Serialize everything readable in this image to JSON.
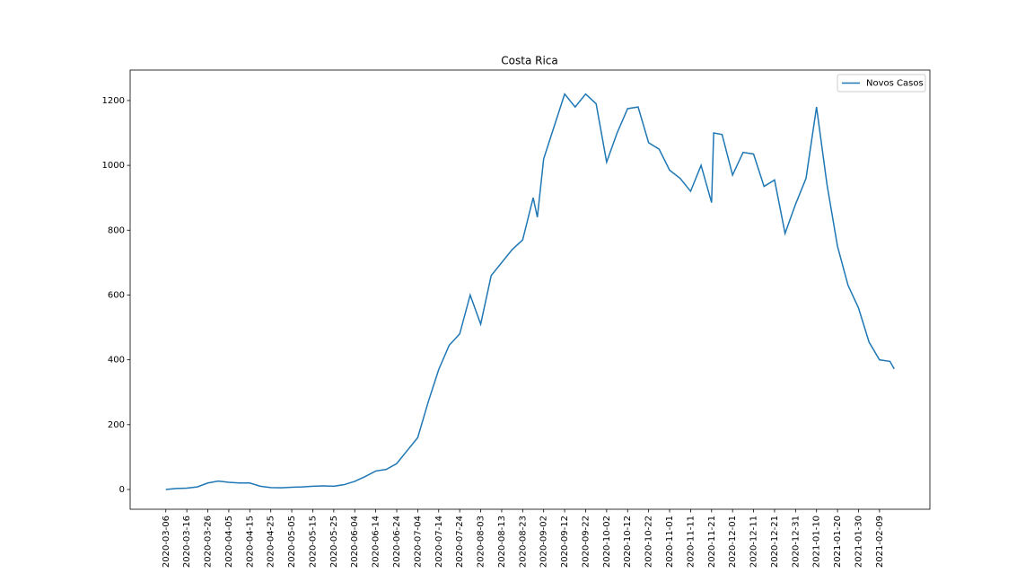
{
  "chart_data": {
    "type": "line",
    "title": "Costa Rica",
    "x": [
      "2020-03-06",
      "2020-03-11",
      "2020-03-16",
      "2020-03-21",
      "2020-03-26",
      "2020-03-31",
      "2020-04-05",
      "2020-04-10",
      "2020-04-15",
      "2020-04-20",
      "2020-04-25",
      "2020-04-30",
      "2020-05-05",
      "2020-05-10",
      "2020-05-15",
      "2020-05-20",
      "2020-05-25",
      "2020-05-30",
      "2020-06-04",
      "2020-06-09",
      "2020-06-14",
      "2020-06-19",
      "2020-06-24",
      "2020-06-29",
      "2020-07-04",
      "2020-07-09",
      "2020-07-14",
      "2020-07-19",
      "2020-07-24",
      "2020-07-29",
      "2020-08-03",
      "2020-08-08",
      "2020-08-13",
      "2020-08-18",
      "2020-08-23",
      "2020-08-28",
      "2020-08-30",
      "2020-09-02",
      "2020-09-07",
      "2020-09-12",
      "2020-09-17",
      "2020-09-22",
      "2020-09-27",
      "2020-10-02",
      "2020-10-07",
      "2020-10-12",
      "2020-10-17",
      "2020-10-22",
      "2020-10-27",
      "2020-11-01",
      "2020-11-06",
      "2020-11-11",
      "2020-11-16",
      "2020-11-21",
      "2020-11-22",
      "2020-11-26",
      "2020-12-01",
      "2020-12-06",
      "2020-12-11",
      "2020-12-16",
      "2020-12-21",
      "2020-12-26",
      "2020-12-31",
      "2021-01-05",
      "2021-01-10",
      "2021-01-15",
      "2021-01-20",
      "2021-01-25",
      "2021-01-30",
      "2021-02-04",
      "2021-02-09",
      "2021-02-14",
      "2021-02-16"
    ],
    "series": [
      {
        "name": "Novos Casos",
        "color": "#1f77b4",
        "values": [
          0,
          3,
          4,
          8,
          20,
          26,
          22,
          20,
          20,
          10,
          6,
          5,
          7,
          8,
          10,
          11,
          10,
          15,
          25,
          40,
          57,
          62,
          80,
          120,
          160,
          270,
          370,
          445,
          480,
          600,
          510,
          660,
          700,
          740,
          770,
          900,
          840,
          1020,
          1120,
          1220,
          1180,
          1220,
          1190,
          1010,
          1100,
          1175,
          1180,
          1070,
          1050,
          985,
          960,
          920,
          1000,
          885,
          1100,
          1095,
          970,
          1040,
          1035,
          935,
          955,
          790,
          880,
          960,
          1180,
          940,
          750,
          630,
          560,
          455,
          400,
          395,
          372
        ]
      }
    ],
    "xlim": [
      "2020-02-18",
      "2021-03-05"
    ],
    "xticks": [
      "2020-03-06",
      "2020-03-16",
      "2020-03-26",
      "2020-04-05",
      "2020-04-15",
      "2020-04-25",
      "2020-05-05",
      "2020-05-15",
      "2020-05-25",
      "2020-06-04",
      "2020-06-14",
      "2020-06-24",
      "2020-07-04",
      "2020-07-14",
      "2020-07-24",
      "2020-08-03",
      "2020-08-13",
      "2020-08-23",
      "2020-09-02",
      "2020-09-12",
      "2020-09-22",
      "2020-10-02",
      "2020-10-12",
      "2020-10-22",
      "2020-11-01",
      "2020-11-11",
      "2020-11-21",
      "2020-12-01",
      "2020-12-11",
      "2020-12-21",
      "2020-12-31",
      "2021-01-10",
      "2021-01-20",
      "2021-01-30",
      "2021-02-09"
    ],
    "ylim": [
      -61,
      1294
    ],
    "yticks": [
      0,
      200,
      400,
      600,
      800,
      1000,
      1200
    ],
    "legend": "upper right"
  }
}
